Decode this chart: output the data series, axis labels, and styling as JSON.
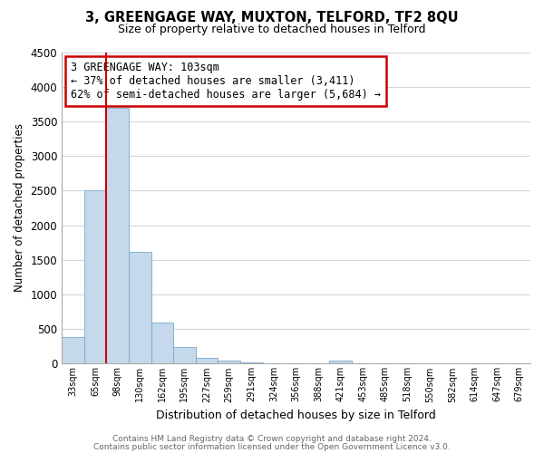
{
  "title1": "3, GREENGAGE WAY, MUXTON, TELFORD, TF2 8QU",
  "title2": "Size of property relative to detached houses in Telford",
  "xlabel": "Distribution of detached houses by size in Telford",
  "ylabel": "Number of detached properties",
  "bar_labels": [
    "33sqm",
    "65sqm",
    "98sqm",
    "130sqm",
    "162sqm",
    "195sqm",
    "227sqm",
    "259sqm",
    "291sqm",
    "324sqm",
    "356sqm",
    "388sqm",
    "421sqm",
    "453sqm",
    "485sqm",
    "518sqm",
    "550sqm",
    "582sqm",
    "614sqm",
    "647sqm",
    "679sqm"
  ],
  "bar_values": [
    380,
    2500,
    3700,
    1620,
    600,
    240,
    90,
    50,
    15,
    5,
    0,
    0,
    50,
    5,
    0,
    0,
    0,
    0,
    0,
    0,
    5
  ],
  "bar_color": "#c5d8ec",
  "vline_color": "#cc0000",
  "vline_index": 2,
  "ylim": [
    0,
    4500
  ],
  "annotation_text": "3 GREENGAGE WAY: 103sqm\n← 37% of detached houses are smaller (3,411)\n62% of semi-detached houses are larger (5,684) →",
  "footer1": "Contains HM Land Registry data © Crown copyright and database right 2024.",
  "footer2": "Contains public sector information licensed under the Open Government Licence v3.0.",
  "background_color": "#ffffff",
  "grid_color": "#d0d8e0",
  "title1_fontsize": 10.5,
  "title2_fontsize": 9,
  "ylabel_fontsize": 8.5,
  "xlabel_fontsize": 9,
  "tick_fontsize": 7,
  "annotation_fontsize": 8.5,
  "footer_fontsize": 6.5
}
